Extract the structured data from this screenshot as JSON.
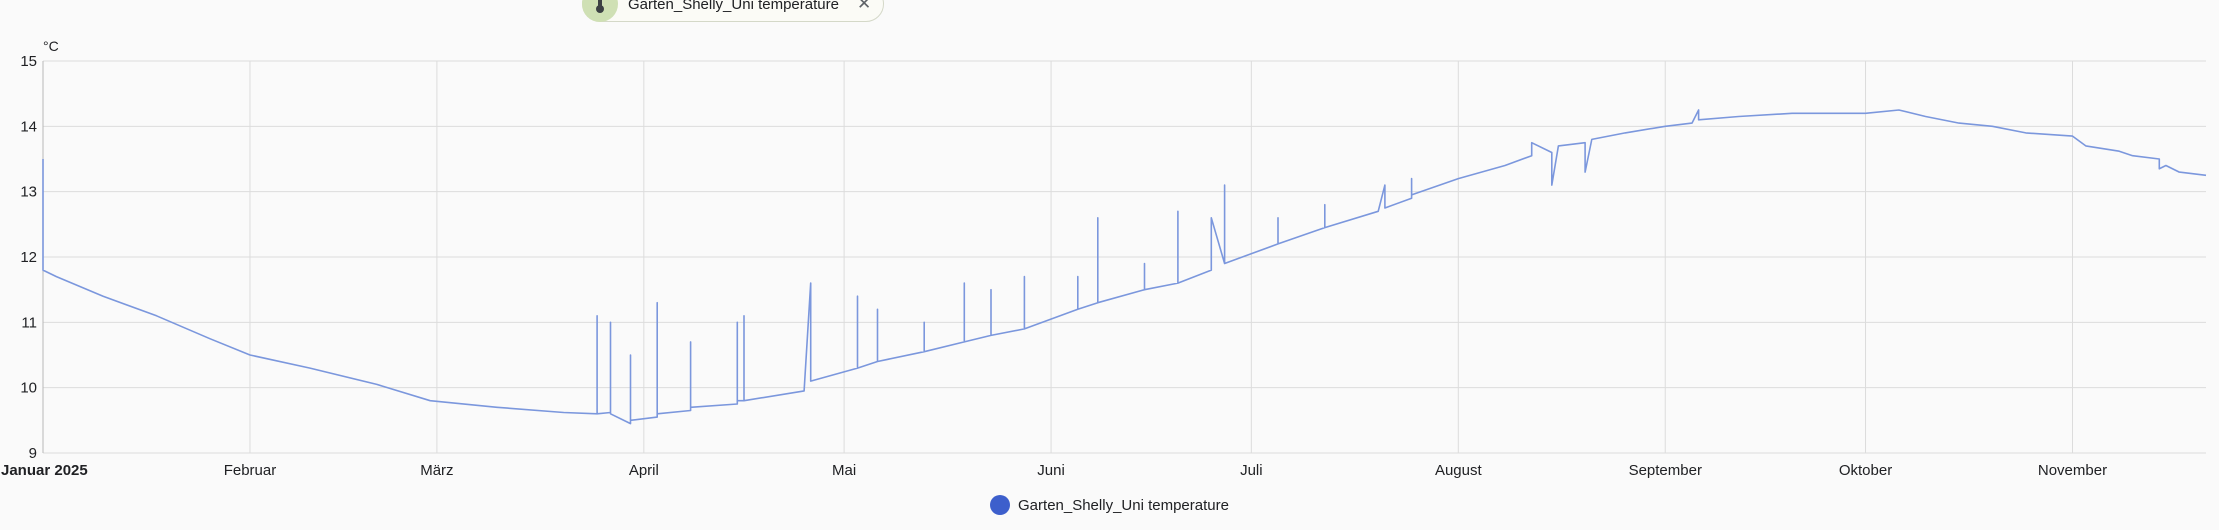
{
  "chip": {
    "label": "Garten_Shelly_Uni temperature",
    "icon": "thermometer-icon",
    "close": "✕"
  },
  "legend": {
    "label": "Garten_Shelly_Uni temperature"
  },
  "colors": {
    "series": "#7b97dd",
    "series_dense": "#3d5fcc",
    "grid": "#dcdcdc"
  },
  "chart_data": {
    "type": "line",
    "ylabel": "°C",
    "ylim": [
      9,
      15
    ],
    "yticks": [
      9,
      10,
      11,
      12,
      13,
      14,
      15
    ],
    "xticks": [
      {
        "label": "Januar 2025",
        "date": "2025-01-01",
        "bold": true
      },
      {
        "label": "Februar",
        "date": "2025-02-01"
      },
      {
        "label": "März",
        "date": "2025-03-01"
      },
      {
        "label": "April",
        "date": "2025-04-01"
      },
      {
        "label": "Mai",
        "date": "2025-05-01"
      },
      {
        "label": "Juni",
        "date": "2025-06-01"
      },
      {
        "label": "Juli",
        "date": "2025-07-01"
      },
      {
        "label": "August",
        "date": "2025-08-01"
      },
      {
        "label": "September",
        "date": "2025-09-01"
      },
      {
        "label": "Oktober",
        "date": "2025-10-01"
      },
      {
        "label": "November",
        "date": "2025-11-01"
      }
    ],
    "xlim": [
      "2025-01-01",
      "2025-11-21"
    ],
    "grid": true,
    "legend_position": "bottom",
    "series": [
      {
        "name": "Garten_Shelly_Uni temperature",
        "points": [
          [
            "2025-01-01",
            13.5
          ],
          [
            "2025-01-01",
            11.8
          ],
          [
            "2025-01-03",
            11.7
          ],
          [
            "2025-01-10",
            11.4
          ],
          [
            "2025-01-18",
            11.1
          ],
          [
            "2025-01-26",
            10.75
          ],
          [
            "2025-02-01",
            10.5
          ],
          [
            "2025-02-10",
            10.3
          ],
          [
            "2025-02-20",
            10.05
          ],
          [
            "2025-02-28",
            9.8
          ],
          [
            "2025-03-10",
            9.7
          ],
          [
            "2025-03-20",
            9.62
          ],
          [
            "2025-03-25",
            9.6
          ],
          [
            "2025-03-25",
            11.1
          ],
          [
            "2025-03-25",
            9.6
          ],
          [
            "2025-03-27",
            9.62
          ],
          [
            "2025-03-27",
            11.0
          ],
          [
            "2025-03-27",
            9.6
          ],
          [
            "2025-03-30",
            9.45
          ],
          [
            "2025-03-30",
            10.5
          ],
          [
            "2025-03-30",
            9.5
          ],
          [
            "2025-04-03",
            9.55
          ],
          [
            "2025-04-03",
            11.3
          ],
          [
            "2025-04-03",
            9.6
          ],
          [
            "2025-04-08",
            9.65
          ],
          [
            "2025-04-08",
            10.7
          ],
          [
            "2025-04-08",
            9.7
          ],
          [
            "2025-04-15",
            9.75
          ],
          [
            "2025-04-15",
            11.0
          ],
          [
            "2025-04-15",
            9.8
          ],
          [
            "2025-04-16",
            9.8
          ],
          [
            "2025-04-16",
            11.1
          ],
          [
            "2025-04-16",
            9.8
          ],
          [
            "2025-04-25",
            9.95
          ],
          [
            "2025-04-26",
            11.6
          ],
          [
            "2025-04-26",
            10.1
          ],
          [
            "2025-05-03",
            10.3
          ],
          [
            "2025-05-03",
            11.4
          ],
          [
            "2025-05-03",
            10.3
          ],
          [
            "2025-05-06",
            10.4
          ],
          [
            "2025-05-06",
            11.2
          ],
          [
            "2025-05-06",
            10.4
          ],
          [
            "2025-05-13",
            10.55
          ],
          [
            "2025-05-13",
            11.0
          ],
          [
            "2025-05-13",
            10.55
          ],
          [
            "2025-05-19",
            10.7
          ],
          [
            "2025-05-19",
            11.6
          ],
          [
            "2025-05-19",
            10.7
          ],
          [
            "2025-05-23",
            10.8
          ],
          [
            "2025-05-23",
            11.5
          ],
          [
            "2025-05-23",
            10.8
          ],
          [
            "2025-05-28",
            10.9
          ],
          [
            "2025-05-28",
            11.7
          ],
          [
            "2025-05-28",
            10.9
          ],
          [
            "2025-06-05",
            11.2
          ],
          [
            "2025-06-05",
            11.7
          ],
          [
            "2025-06-05",
            11.2
          ],
          [
            "2025-06-08",
            11.3
          ],
          [
            "2025-06-08",
            12.6
          ],
          [
            "2025-06-08",
            11.3
          ],
          [
            "2025-06-15",
            11.5
          ],
          [
            "2025-06-15",
            11.9
          ],
          [
            "2025-06-15",
            11.5
          ],
          [
            "2025-06-20",
            11.6
          ],
          [
            "2025-06-20",
            12.7
          ],
          [
            "2025-06-20",
            11.6
          ],
          [
            "2025-06-25",
            11.8
          ],
          [
            "2025-06-25",
            12.6
          ],
          [
            "2025-06-27",
            11.9
          ],
          [
            "2025-06-27",
            13.1
          ],
          [
            "2025-06-27",
            11.9
          ],
          [
            "2025-07-05",
            12.2
          ],
          [
            "2025-07-05",
            12.6
          ],
          [
            "2025-07-05",
            12.2
          ],
          [
            "2025-07-12",
            12.45
          ],
          [
            "2025-07-12",
            12.8
          ],
          [
            "2025-07-12",
            12.45
          ],
          [
            "2025-07-20",
            12.7
          ],
          [
            "2025-07-21",
            13.1
          ],
          [
            "2025-07-21",
            12.75
          ],
          [
            "2025-07-25",
            12.9
          ],
          [
            "2025-07-25",
            13.2
          ],
          [
            "2025-07-25",
            12.95
          ],
          [
            "2025-08-01",
            13.2
          ],
          [
            "2025-08-08",
            13.4
          ],
          [
            "2025-08-12",
            13.55
          ],
          [
            "2025-08-12",
            13.75
          ],
          [
            "2025-08-15",
            13.6
          ],
          [
            "2025-08-15",
            13.1
          ],
          [
            "2025-08-16",
            13.7
          ],
          [
            "2025-08-20",
            13.75
          ],
          [
            "2025-08-20",
            13.3
          ],
          [
            "2025-08-21",
            13.8
          ],
          [
            "2025-08-26",
            13.9
          ],
          [
            "2025-09-01",
            14.0
          ],
          [
            "2025-09-05",
            14.05
          ],
          [
            "2025-09-06",
            14.25
          ],
          [
            "2025-09-06",
            14.1
          ],
          [
            "2025-09-12",
            14.15
          ],
          [
            "2025-09-20",
            14.2
          ],
          [
            "2025-10-01",
            14.2
          ],
          [
            "2025-10-06",
            14.25
          ],
          [
            "2025-10-10",
            14.15
          ],
          [
            "2025-10-15",
            14.05
          ],
          [
            "2025-10-20",
            14.0
          ],
          [
            "2025-10-25",
            13.9
          ],
          [
            "2025-11-01",
            13.85
          ],
          [
            "2025-11-03",
            13.7
          ],
          [
            "2025-11-08",
            13.62
          ],
          [
            "2025-11-10",
            13.55
          ],
          [
            "2025-11-14",
            13.5
          ],
          [
            "2025-11-14",
            13.35
          ],
          [
            "2025-11-15",
            13.4
          ],
          [
            "2025-11-17",
            13.3
          ],
          [
            "2025-11-21",
            13.25
          ]
        ]
      }
    ]
  }
}
